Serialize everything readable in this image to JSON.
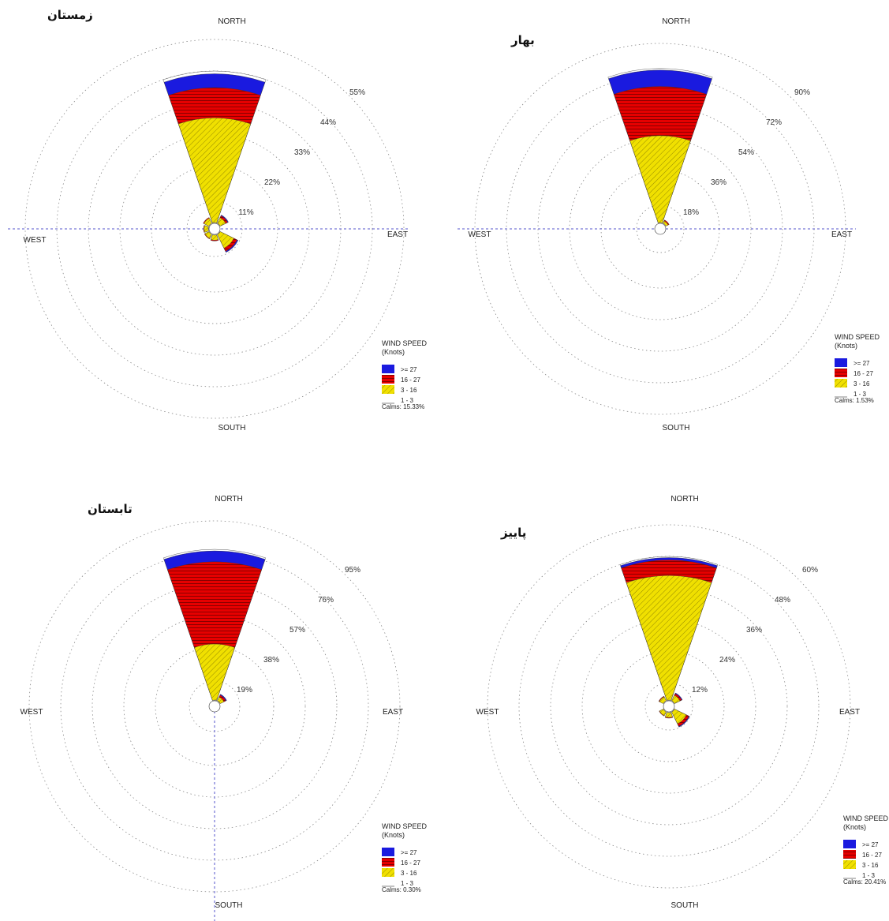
{
  "chart_data": [
    {
      "type": "windrose",
      "title": "زمستان",
      "compass": {
        "north": "NORTH",
        "east": "EAST",
        "south": "SOUTH",
        "west": "WEST"
      },
      "ring_labels": [
        "11%",
        "22%",
        "33%",
        "44%",
        "55%"
      ],
      "legend": {
        "title": "WIND SPEED",
        "subtitle": "(Knots)",
        "items": [
          ">= 27",
          "16 - 27",
          "3 - 16",
          "1 - 3"
        ],
        "calms": "Calms: 15.33%"
      },
      "series_colors": [
        "#1a1adf",
        "#e00000",
        "#f0e000",
        "#ffffff"
      ],
      "petals": [
        {
          "dir": 0,
          "cum": [
            38,
            49,
            54,
            55
          ]
        },
        {
          "dir": 45,
          "cum": [
            2.2,
            3.0,
            3.3
          ]
        },
        {
          "dir": 135,
          "cum": [
            5.5,
            6.8,
            7.2
          ]
        },
        {
          "dir": 180,
          "cum": [
            1.8,
            2.1
          ]
        },
        {
          "dir": 225,
          "cum": [
            1.6,
            1.8
          ]
        },
        {
          "dir": 270,
          "cum": [
            1.5,
            1.7
          ]
        },
        {
          "dir": 315,
          "cum": [
            2.0,
            2.3
          ]
        }
      ]
    },
    {
      "type": "windrose",
      "title": "بهار",
      "compass": {
        "north": "NORTH",
        "east": "EAST",
        "south": "SOUTH",
        "west": "WEST"
      },
      "ring_labels": [
        "18%",
        "36%",
        "54%",
        "72%",
        "90%"
      ],
      "legend": {
        "title": "WIND SPEED",
        "subtitle": "(Knots)",
        "items": [
          ">= 27",
          "16 - 27",
          "3 - 16",
          "1 - 3"
        ],
        "calms": "Calms: 1.53%"
      },
      "series_colors": [
        "#1a1adf",
        "#e00000",
        "#f0e000",
        "#ffffff"
      ],
      "petals": [
        {
          "dir": 0,
          "cum": [
            53,
            83,
            93,
            94
          ]
        },
        {
          "dir": 45,
          "cum": [
            1.5,
            2.2
          ]
        }
      ]
    },
    {
      "type": "windrose",
      "title": "تابستان",
      "compass": {
        "north": "NORTH",
        "east": "EAST",
        "south": "SOUTH",
        "west": "WEST"
      },
      "ring_labels": [
        "19%",
        "38%",
        "57%",
        "76%",
        "95%"
      ],
      "legend": {
        "title": "WIND SPEED",
        "subtitle": "(Knots)",
        "items": [
          ">= 27",
          "16 - 27",
          "3 - 16",
          "1 - 3"
        ],
        "calms": "Calms: 0.30%"
      },
      "series_colors": [
        "#1a1adf",
        "#e00000",
        "#f0e000",
        "#ffffff"
      ],
      "petals": [
        {
          "dir": 0,
          "cum": [
            36,
            89,
            96,
            97
          ]
        },
        {
          "dir": 45,
          "cum": [
            2.6,
            4.0,
            4.6
          ]
        }
      ]
    },
    {
      "type": "windrose",
      "title": "پاییز",
      "compass": {
        "north": "NORTH",
        "east": "EAST",
        "south": "SOUTH",
        "west": "WEST"
      },
      "ring_labels": [
        "12%",
        "24%",
        "36%",
        "48%",
        "60%"
      ],
      "legend": {
        "title": "WIND SPEED",
        "subtitle": "(Knots)",
        "items": [
          ">= 27",
          "16 - 27",
          "3 - 16",
          "1 - 3"
        ],
        "calms": "Calms: 20.41%"
      },
      "series_colors": [
        "#1a1adf",
        "#e00000",
        "#f0e000",
        "#ffffff"
      ],
      "petals": [
        {
          "dir": 0,
          "cum": [
            52,
            58.5,
            59.5,
            60
          ]
        },
        {
          "dir": 45,
          "cum": [
            2.5,
            3.3,
            3.6
          ]
        },
        {
          "dir": 135,
          "cum": [
            5.5,
            6.7,
            7.0
          ]
        },
        {
          "dir": 180,
          "cum": [
            2.0,
            2.3
          ]
        },
        {
          "dir": 225,
          "cum": [
            1.7,
            1.9
          ]
        },
        {
          "dir": 315,
          "cum": [
            1.8,
            2.1
          ]
        }
      ]
    }
  ]
}
